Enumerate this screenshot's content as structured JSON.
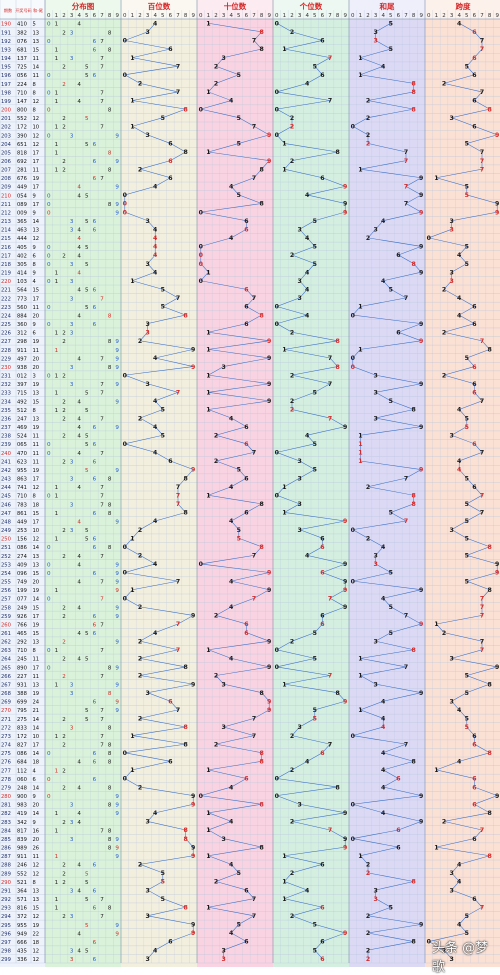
{
  "chart_data": {
    "type": "table",
    "title": "",
    "header": {
      "left_cols": [
        "期数",
        "开奖号码",
        "和-尾"
      ],
      "sections": [
        {
          "key": "distribution",
          "title": "分布图",
          "color": "#d9f2d9"
        },
        {
          "key": "hundreds",
          "title": "百位数",
          "color": "#f3efdf"
        },
        {
          "key": "tens",
          "title": "十位数",
          "color": "#f9d3e1"
        },
        {
          "key": "units",
          "title": "个位数",
          "color": "#d4efe0"
        },
        {
          "key": "sumtail",
          "title": "和尾",
          "color": "#dcd9f5"
        },
        {
          "key": "span",
          "title": "跨度",
          "color": "#fbe0d4"
        }
      ],
      "digits": [
        "0",
        "1",
        "2",
        "3",
        "4",
        "5",
        "6",
        "7",
        "8",
        "9"
      ]
    },
    "colors": {
      "line": "#3a6fc8",
      "odd_number": "#1a1a1a",
      "hot_number": "#d42a2a",
      "left_bg": "#eef3fb",
      "period_red": "#d42a2a",
      "grid": "#b8c7dd"
    },
    "rows": [
      {
        "p": "190",
        "n": "410",
        "s": "5"
      },
      {
        "p": "191",
        "n": "382",
        "s": "13"
      },
      {
        "p": "192",
        "n": "076",
        "s": "13"
      },
      {
        "p": "193",
        "n": "681",
        "s": "15"
      },
      {
        "p": "194",
        "n": "137",
        "s": "11"
      },
      {
        "p": "195",
        "n": "725",
        "s": "14"
      },
      {
        "p": "196",
        "n": "056",
        "s": "11"
      },
      {
        "p": "197",
        "n": "224",
        "s": "8"
      },
      {
        "p": "198",
        "n": "710",
        "s": "8"
      },
      {
        "p": "199",
        "n": "147",
        "s": "12"
      },
      {
        "p": "200",
        "n": "800",
        "s": "8"
      },
      {
        "p": "201",
        "n": "552",
        "s": "12"
      },
      {
        "p": "202",
        "n": "172",
        "s": "10"
      },
      {
        "p": "203",
        "n": "390",
        "s": "12"
      },
      {
        "p": "204",
        "n": "651",
        "s": "12"
      },
      {
        "p": "205",
        "n": "818",
        "s": "17"
      },
      {
        "p": "206",
        "n": "692",
        "s": "17"
      },
      {
        "p": "207",
        "n": "281",
        "s": "11"
      },
      {
        "p": "208",
        "n": "676",
        "s": "19"
      },
      {
        "p": "209",
        "n": "449",
        "s": "17"
      },
      {
        "p": "210",
        "n": "054",
        "s": "9"
      },
      {
        "p": "211",
        "n": "089",
        "s": "17"
      },
      {
        "p": "212",
        "n": "009",
        "s": "9"
      },
      {
        "p": "213",
        "n": "365",
        "s": "14"
      },
      {
        "p": "214",
        "n": "463",
        "s": "13"
      },
      {
        "p": "215",
        "n": "444",
        "s": "12"
      },
      {
        "p": "216",
        "n": "405",
        "s": "9"
      },
      {
        "p": "217",
        "n": "402",
        "s": "6"
      },
      {
        "p": "218",
        "n": "305",
        "s": "8"
      },
      {
        "p": "219",
        "n": "414",
        "s": "9"
      },
      {
        "p": "220",
        "n": "103",
        "s": "4"
      },
      {
        "p": "221",
        "n": "564",
        "s": "15"
      },
      {
        "p": "222",
        "n": "773",
        "s": "17"
      },
      {
        "p": "223",
        "n": "560",
        "s": "11"
      },
      {
        "p": "224",
        "n": "884",
        "s": "20"
      },
      {
        "p": "225",
        "n": "360",
        "s": "9"
      },
      {
        "p": "226",
        "n": "312",
        "s": "6"
      },
      {
        "p": "227",
        "n": "298",
        "s": "19"
      },
      {
        "p": "228",
        "n": "911",
        "s": "11"
      },
      {
        "p": "229",
        "n": "497",
        "s": "20"
      },
      {
        "p": "230",
        "n": "938",
        "s": "20"
      },
      {
        "p": "231",
        "n": "012",
        "s": "3"
      },
      {
        "p": "232",
        "n": "397",
        "s": "19"
      },
      {
        "p": "233",
        "n": "715",
        "s": "13"
      },
      {
        "p": "234",
        "n": "492",
        "s": "15"
      },
      {
        "p": "235",
        "n": "512",
        "s": "8"
      },
      {
        "p": "236",
        "n": "247",
        "s": "13"
      },
      {
        "p": "237",
        "n": "469",
        "s": "19"
      },
      {
        "p": "238",
        "n": "524",
        "s": "11"
      },
      {
        "p": "239",
        "n": "065",
        "s": "11"
      },
      {
        "p": "240",
        "n": "470",
        "s": "11"
      },
      {
        "p": "241",
        "n": "623",
        "s": "11"
      },
      {
        "p": "242",
        "n": "955",
        "s": "19"
      },
      {
        "p": "243",
        "n": "863",
        "s": "17"
      },
      {
        "p": "244",
        "n": "741",
        "s": "12"
      },
      {
        "p": "245",
        "n": "710",
        "s": "8"
      },
      {
        "p": "246",
        "n": "783",
        "s": "18"
      },
      {
        "p": "247",
        "n": "861",
        "s": "15"
      },
      {
        "p": "248",
        "n": "449",
        "s": "17"
      },
      {
        "p": "249",
        "n": "253",
        "s": "10"
      },
      {
        "p": "250",
        "n": "156",
        "s": "12"
      },
      {
        "p": "251",
        "n": "086",
        "s": "14"
      },
      {
        "p": "252",
        "n": "274",
        "s": "13"
      },
      {
        "p": "253",
        "n": "409",
        "s": "13"
      },
      {
        "p": "254",
        "n": "096",
        "s": "15"
      },
      {
        "p": "255",
        "n": "749",
        "s": "20"
      },
      {
        "p": "256",
        "n": "199",
        "s": "19"
      },
      {
        "p": "257",
        "n": "077",
        "s": "14"
      },
      {
        "p": "258",
        "n": "249",
        "s": "15"
      },
      {
        "p": "259",
        "n": "926",
        "s": "17"
      },
      {
        "p": "260",
        "n": "766",
        "s": "19"
      },
      {
        "p": "261",
        "n": "465",
        "s": "15"
      },
      {
        "p": "262",
        "n": "292",
        "s": "13"
      },
      {
        "p": "263",
        "n": "710",
        "s": "8"
      },
      {
        "p": "264",
        "n": "245",
        "s": "11"
      },
      {
        "p": "265",
        "n": "890",
        "s": "17"
      },
      {
        "p": "266",
        "n": "227",
        "s": "11"
      },
      {
        "p": "267",
        "n": "931",
        "s": "13"
      },
      {
        "p": "268",
        "n": "388",
        "s": "19"
      },
      {
        "p": "269",
        "n": "699",
        "s": "24"
      },
      {
        "p": "270",
        "n": "795",
        "s": "21"
      },
      {
        "p": "271",
        "n": "275",
        "s": "14"
      },
      {
        "p": "272",
        "n": "833",
        "s": "14"
      },
      {
        "p": "273",
        "n": "172",
        "s": "10"
      },
      {
        "p": "274",
        "n": "827",
        "s": "17"
      },
      {
        "p": "275",
        "n": "086",
        "s": "14"
      },
      {
        "p": "276",
        "n": "684",
        "s": "18"
      },
      {
        "p": "277",
        "n": "112",
        "s": "4"
      },
      {
        "p": "278",
        "n": "060",
        "s": "6"
      },
      {
        "p": "279",
        "n": "248",
        "s": "14"
      },
      {
        "p": "280",
        "n": "900",
        "s": "9"
      },
      {
        "p": "281",
        "n": "983",
        "s": "20"
      },
      {
        "p": "282",
        "n": "419",
        "s": "14"
      },
      {
        "p": "283",
        "n": "342",
        "s": "9"
      },
      {
        "p": "284",
        "n": "817",
        "s": "16"
      },
      {
        "p": "285",
        "n": "839",
        "s": "20"
      },
      {
        "p": "286",
        "n": "989",
        "s": "26"
      },
      {
        "p": "287",
        "n": "911",
        "s": "11"
      },
      {
        "p": "288",
        "n": "246",
        "s": "12"
      },
      {
        "p": "289",
        "n": "552",
        "s": "12"
      },
      {
        "p": "290",
        "n": "521",
        "s": "8"
      },
      {
        "p": "291",
        "n": "364",
        "s": "13"
      },
      {
        "p": "292",
        "n": "571",
        "s": "13"
      },
      {
        "p": "293",
        "n": "816",
        "s": "15"
      },
      {
        "p": "294",
        "n": "372",
        "s": "12"
      },
      {
        "p": "295",
        "n": "955",
        "s": "19"
      },
      {
        "p": "296",
        "n": "949",
        "s": "22"
      },
      {
        "p": "297",
        "n": "666",
        "s": "18"
      },
      {
        "p": "298",
        "n": "435",
        "s": "12"
      },
      {
        "p": "299",
        "n": "336",
        "s": "12"
      }
    ]
  },
  "watermark": "头条 @梦歌"
}
